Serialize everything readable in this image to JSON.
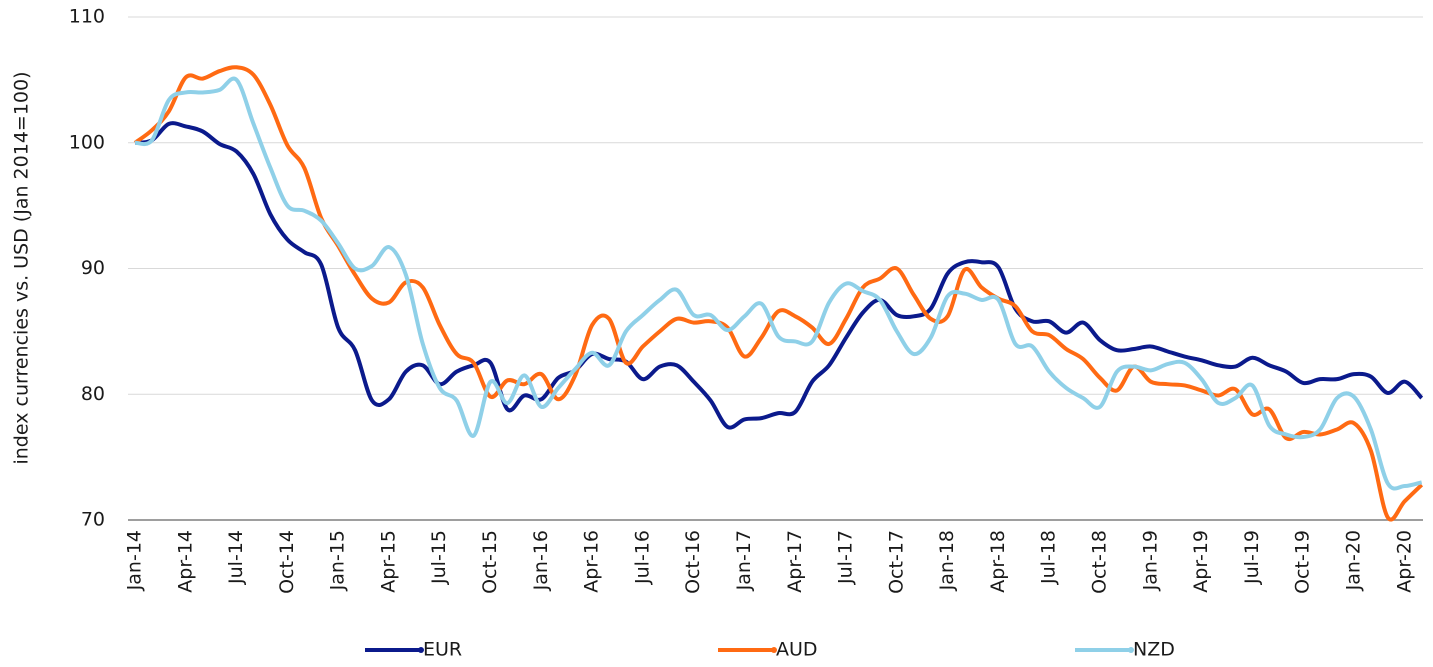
{
  "chart_data": {
    "type": "line",
    "y_label": "index currencies vs. USD (Jan 2014=100)",
    "categories": [
      "Jan-14",
      null,
      null,
      "Apr-14",
      null,
      null,
      "Jul-14",
      null,
      null,
      "Oct-14",
      null,
      null,
      "Jan-15",
      null,
      null,
      "Apr-15",
      null,
      null,
      "Jul-15",
      null,
      null,
      "Oct-15",
      null,
      null,
      "Jan-16",
      null,
      null,
      "Apr-16",
      null,
      null,
      "Jul-16",
      null,
      null,
      "Oct-16",
      null,
      null,
      "Jan-17",
      null,
      null,
      "Apr-17",
      null,
      null,
      "Jul-17",
      null,
      null,
      "Oct-17",
      null,
      null,
      "Jan-18",
      null,
      null,
      "Apr-18",
      null,
      null,
      "Jul-18",
      null,
      null,
      "Oct-18",
      null,
      null,
      "Jan-19",
      null,
      null,
      "Apr-19",
      null,
      null,
      "Jul-19",
      null,
      null,
      "Oct-19",
      null,
      null,
      "Jan-20",
      null,
      null,
      "Apr-20",
      null
    ],
    "series": [
      {
        "name": "EUR",
        "color": "#0b1a8c",
        "values": [
          100,
          100.2,
          101.5,
          101.3,
          100.9,
          99.9,
          99.3,
          97.5,
          94.3,
          92.3,
          91.3,
          90.3,
          85.3,
          83.5,
          79.5,
          79.6,
          81.8,
          82.3,
          80.8,
          81.8,
          82.3,
          82.5,
          78.8,
          79.9,
          79.6,
          81.3,
          81.9,
          83.2,
          82.8,
          82.6,
          81.2,
          82.2,
          82.3,
          81,
          79.5,
          77.4,
          78,
          78.1,
          78.5,
          78.6,
          81,
          82.3,
          84.5,
          86.5,
          87.5,
          86.3,
          86.2,
          86.8,
          89.6,
          90.5,
          90.5,
          90.1,
          86.8,
          85.8,
          85.8,
          84.9,
          85.7,
          84.3,
          83.5,
          83.6,
          83.8,
          83.4,
          83,
          82.7,
          82.3,
          82.2,
          82.9,
          82.3,
          81.8,
          80.9,
          81.2,
          81.2,
          81.6,
          81.4,
          80.1,
          81,
          79.7
        ]
      },
      {
        "name": "AUD",
        "color": "#ff6a13",
        "values": [
          100,
          101,
          102.5,
          105.2,
          105.1,
          105.7,
          106,
          105.4,
          103,
          99.8,
          98,
          94,
          91.8,
          89.5,
          87.6,
          87.3,
          88.9,
          88.5,
          85.5,
          83.2,
          82.5,
          79.8,
          81.1,
          80.8,
          81.6,
          79.6,
          81.5,
          85.5,
          86,
          82.5,
          83.8,
          85,
          86,
          85.7,
          85.8,
          85.3,
          83,
          84.5,
          86.6,
          86.2,
          85.3,
          84,
          86,
          88.5,
          89.2,
          90,
          87.9,
          86,
          86.2,
          89.9,
          88.5,
          87.6,
          87,
          85,
          84.7,
          83.6,
          82.8,
          81.3,
          80.3,
          82.2,
          81,
          80.8,
          80.7,
          80.3,
          79.9,
          80.4,
          78.4,
          78.8,
          76.5,
          77,
          76.8,
          77.2,
          77.7,
          75.5,
          70.2,
          71.5,
          72.8
        ]
      },
      {
        "name": "NZD",
        "color": "#8fd0e8",
        "values": [
          100,
          100.2,
          103.4,
          104,
          104,
          104.2,
          105,
          101.5,
          98,
          95,
          94.6,
          93.8,
          92,
          90,
          90.2,
          91.7,
          89.5,
          84,
          80.5,
          79.5,
          76.7,
          81,
          79.3,
          81.5,
          79,
          80.5,
          82,
          83.3,
          82.3,
          85,
          86.3,
          87.5,
          88.3,
          86.3,
          86.3,
          85.1,
          86.2,
          87.2,
          84.6,
          84.2,
          84.2,
          87.3,
          88.8,
          88.2,
          87.5,
          85,
          83.2,
          84.5,
          87.8,
          88,
          87.5,
          87.5,
          84,
          83.8,
          81.8,
          80.5,
          79.7,
          79,
          81.8,
          82.2,
          81.9,
          82.4,
          82.5,
          81.2,
          79.3,
          79.7,
          80.7,
          77.5,
          76.8,
          76.6,
          77.2,
          79.7,
          79.8,
          77.2,
          72.9,
          72.7,
          73
        ]
      }
    ],
    "ylim": [
      70,
      110
    ],
    "yticks": [
      70,
      80,
      90,
      100,
      110
    ],
    "grid": true,
    "legend": "bottom"
  }
}
